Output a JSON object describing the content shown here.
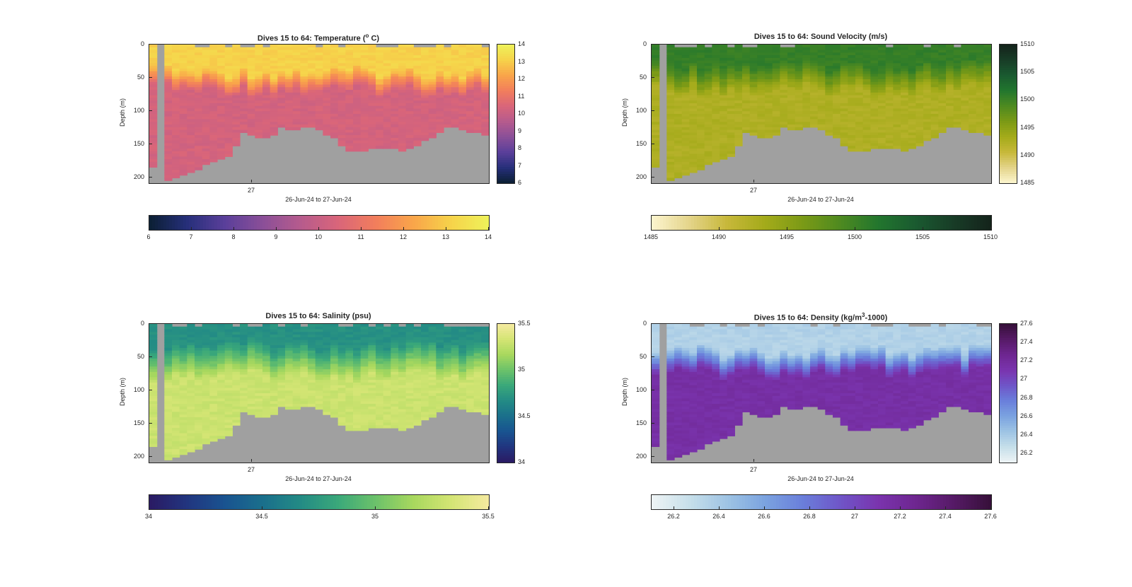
{
  "window": {
    "background": "#ffffff"
  },
  "chart_data": [
    {
      "type": "heatmap",
      "title_prefix": "Dives 15 to 64: Temperature (",
      "title_sup": "o",
      "title_suffix": " C)",
      "xlabel": "26-Jun-24 to 27-Jun-24",
      "ylabel": "Depth (m)",
      "x_tick_labels": [
        "27"
      ],
      "y_tick_labels": [
        "0",
        "50",
        "100",
        "150",
        "200"
      ],
      "ylim": [
        0,
        208
      ],
      "colorbar_ticks": [
        "6",
        "7",
        "8",
        "9",
        "10",
        "11",
        "12",
        "13",
        "14"
      ],
      "clim": [
        6,
        14
      ],
      "colormap": [
        "#0b1f33",
        "#262f7a",
        "#5a3f9a",
        "#8a4f98",
        "#b65b8d",
        "#d9657a",
        "#f27e5c",
        "#f9a54a",
        "#f6d34a",
        "#eef25a"
      ],
      "surface_value": 13.1,
      "deep_value": 10.3,
      "thermocline_depth_m": [
        40,
        70
      ],
      "bottom_depth_m": [
        185,
        205,
        205,
        200,
        196,
        190,
        186,
        180,
        176,
        171,
        166,
        150,
        131,
        135,
        139,
        140,
        137,
        124,
        128,
        129,
        125,
        123,
        127,
        134,
        141,
        150,
        160,
        160,
        158,
        156,
        155,
        155,
        155,
        158,
        154,
        150,
        145,
        141,
        132,
        122,
        124,
        128,
        130,
        132,
        134
      ],
      "no_data_columns": [
        1
      ]
    },
    {
      "type": "heatmap",
      "title_prefix": "Dives 15 to 64: Sound Velocity (m/s)",
      "title_sup": "",
      "title_suffix": "",
      "xlabel": "26-Jun-24 to 27-Jun-24",
      "ylabel": "Depth (m)",
      "x_tick_labels": [
        "27"
      ],
      "y_tick_labels": [
        "0",
        "50",
        "100",
        "150",
        "200"
      ],
      "ylim": [
        0,
        208
      ],
      "colorbar_ticks": [
        "1485",
        "1490",
        "1495",
        "1500",
        "1505",
        "1510"
      ],
      "clim": [
        1485,
        1510
      ],
      "colormap": [
        "#fcf5cf",
        "#e4d48a",
        "#c7b83a",
        "#a4ab1a",
        "#7b9a16",
        "#4e8a20",
        "#22762e",
        "#1a5a30",
        "#183c27",
        "#14231b"
      ],
      "surface_value": 1500.5,
      "deep_value": 1492.5,
      "thermocline_depth_m": [
        30,
        70
      ],
      "bottom_depth_m": [
        185,
        205,
        205,
        200,
        196,
        190,
        186,
        180,
        176,
        171,
        166,
        150,
        131,
        135,
        139,
        140,
        137,
        124,
        128,
        129,
        125,
        123,
        127,
        134,
        141,
        150,
        160,
        160,
        158,
        156,
        155,
        155,
        155,
        158,
        154,
        150,
        145,
        141,
        132,
        122,
        124,
        128,
        130,
        132,
        134
      ],
      "no_data_columns": [
        1
      ]
    },
    {
      "type": "heatmap",
      "title_prefix": "Dives 15 to 64: Salinity (psu)",
      "title_sup": "",
      "title_suffix": "",
      "xlabel": "26-Jun-24 to 27-Jun-24",
      "ylabel": "Depth (m)",
      "x_tick_labels": [
        "27"
      ],
      "y_tick_labels": [
        "0",
        "50",
        "100",
        "150",
        "200"
      ],
      "ylim": [
        0,
        208
      ],
      "colorbar_ticks": [
        "34",
        "34.5",
        "35",
        "35.5"
      ],
      "clim": [
        34,
        35.5
      ],
      "colormap": [
        "#2a1a63",
        "#21357f",
        "#195390",
        "#1a6f8c",
        "#238b85",
        "#3aa87a",
        "#6cc26a",
        "#a8d85e",
        "#d4e574",
        "#f5eaa0"
      ],
      "surface_value": 34.7,
      "deep_value": 35.3,
      "thermocline_depth_m": [
        30,
        80
      ],
      "bottom_depth_m": [
        185,
        205,
        205,
        200,
        196,
        190,
        186,
        180,
        176,
        171,
        166,
        150,
        131,
        135,
        139,
        140,
        137,
        124,
        128,
        129,
        125,
        123,
        127,
        134,
        141,
        150,
        160,
        160,
        158,
        156,
        155,
        155,
        155,
        158,
        154,
        150,
        145,
        141,
        132,
        122,
        124,
        128,
        130,
        132,
        134
      ],
      "no_data_columns": [
        1
      ]
    },
    {
      "type": "heatmap",
      "title_prefix": "Dives 15 to 64: Density (kg/m",
      "title_sup": "3",
      "title_suffix": "-1000)",
      "xlabel": "26-Jun-24 to 27-Jun-24",
      "ylabel": "Depth (m)",
      "x_tick_labels": [
        "27"
      ],
      "y_tick_labels": [
        "0",
        "50",
        "100",
        "150",
        "200"
      ],
      "ylim": [
        0,
        208
      ],
      "colorbar_ticks": [
        "26.2",
        "26.4",
        "26.6",
        "26.8",
        "27",
        "27.2",
        "27.4",
        "27.6"
      ],
      "clim": [
        26.1,
        27.6
      ],
      "colormap": [
        "#eef4f5",
        "#c6dfea",
        "#9ec4e4",
        "#7ba3e0",
        "#6a7fdb",
        "#6f55c8",
        "#7a34ae",
        "#6e2690",
        "#561a66",
        "#361039"
      ],
      "surface_value": 26.35,
      "deep_value": 27.15,
      "thermocline_depth_m": [
        40,
        75
      ],
      "bottom_depth_m": [
        185,
        205,
        205,
        200,
        196,
        190,
        186,
        180,
        176,
        171,
        166,
        150,
        131,
        135,
        139,
        140,
        137,
        124,
        128,
        129,
        125,
        123,
        127,
        134,
        141,
        150,
        160,
        160,
        158,
        156,
        155,
        155,
        155,
        158,
        154,
        150,
        145,
        141,
        132,
        122,
        124,
        128,
        130,
        132,
        134
      ],
      "no_data_columns": [
        1
      ]
    }
  ]
}
